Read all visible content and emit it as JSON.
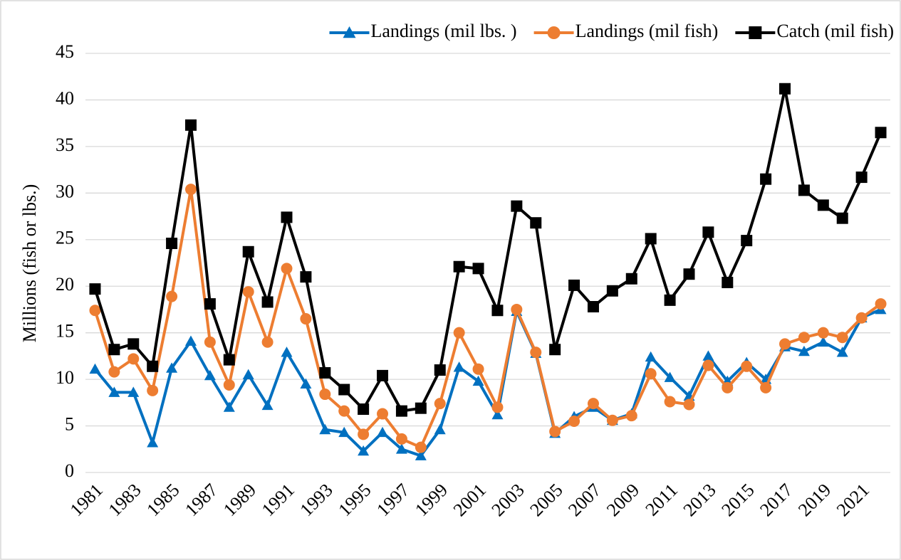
{
  "chart_data": {
    "type": "line",
    "y_label": "Millions (fish or lbs.)",
    "categories": [
      "1981",
      null,
      "1983",
      null,
      "1985",
      null,
      "1987",
      null,
      "1989",
      null,
      "1991",
      null,
      "1993",
      null,
      "1995",
      null,
      "1997",
      null,
      "1999",
      null,
      "2001",
      null,
      "2003",
      null,
      "2005",
      null,
      "2007",
      null,
      "2009",
      null,
      "2011",
      null,
      "2013",
      null,
      "2015",
      null,
      "2017",
      null,
      "2019",
      null,
      "2021",
      null
    ],
    "series": [
      {
        "name": "Landings (mil lbs. )",
        "color": "#0070c0",
        "marker": "triangle",
        "values": [
          11.1,
          8.6,
          8.6,
          3.2,
          11.2,
          14.1,
          10.4,
          7.0,
          10.5,
          7.2,
          12.9,
          9.5,
          4.6,
          4.3,
          2.3,
          4.3,
          2.5,
          1.8,
          4.6,
          11.3,
          9.8,
          6.2,
          17.3,
          12.8,
          4.2,
          6.0,
          7.0,
          5.6,
          6.3,
          12.4,
          10.2,
          8.2,
          12.5,
          9.8,
          11.8,
          10.0,
          13.5,
          13.0,
          14.0,
          12.9,
          16.6,
          17.5
        ]
      },
      {
        "name": "Landings (mil fish)",
        "color": "#ed7d31",
        "marker": "circle",
        "values": [
          17.4,
          10.8,
          12.2,
          8.8,
          18.9,
          30.4,
          14.0,
          9.4,
          19.4,
          14.0,
          21.9,
          16.5,
          8.4,
          6.6,
          4.1,
          6.3,
          3.6,
          2.7,
          7.4,
          15.0,
          11.1,
          7.0,
          17.5,
          12.9,
          4.4,
          5.5,
          7.4,
          5.6,
          6.1,
          10.6,
          7.6,
          7.3,
          11.5,
          9.1,
          11.4,
          9.1,
          13.8,
          14.5,
          15.0,
          14.5,
          16.6,
          18.1
        ]
      },
      {
        "name": "Catch (mil fish)",
        "color": "#000000",
        "marker": "square",
        "values": [
          19.7,
          13.2,
          13.8,
          11.4,
          24.6,
          37.3,
          18.1,
          12.1,
          23.7,
          18.3,
          27.4,
          21.0,
          10.7,
          8.9,
          6.8,
          10.4,
          6.6,
          6.9,
          11.0,
          22.1,
          21.9,
          17.4,
          28.6,
          26.8,
          13.2,
          20.1,
          17.8,
          19.5,
          20.8,
          25.1,
          18.5,
          21.3,
          25.8,
          20.4,
          24.9,
          31.5,
          41.2,
          30.3,
          28.7,
          27.3,
          31.7,
          36.5
        ]
      }
    ],
    "ylim": [
      0,
      45
    ],
    "yticks": [
      0,
      5,
      10,
      15,
      20,
      25,
      30,
      35,
      40,
      45
    ],
    "grid": true,
    "legend": "top-right"
  }
}
